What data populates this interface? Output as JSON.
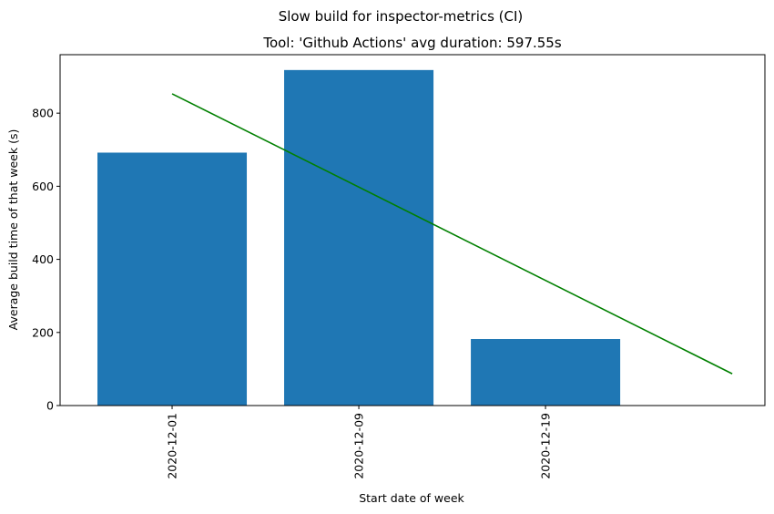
{
  "chart_data": {
    "type": "bar",
    "suptitle": "Slow build for inspector-metrics (CI)",
    "title": "Tool: 'Github Actions' avg duration: 597.55s",
    "xlabel": "Start date of week",
    "ylabel": "Average build time of that week (s)",
    "categories": [
      "2020-12-01",
      "2020-12-09",
      "2020-12-19"
    ],
    "values": [
      692,
      918,
      182
    ],
    "ylim": [
      0,
      960
    ],
    "yticks": [
      0,
      200,
      400,
      600,
      800
    ],
    "trend_line": {
      "x_start": 0,
      "x_end": 3,
      "y_start": 853,
      "y_end": 87,
      "color": "#008000"
    },
    "bar_color": "#1f77b4",
    "grid": false,
    "legend": "none"
  }
}
